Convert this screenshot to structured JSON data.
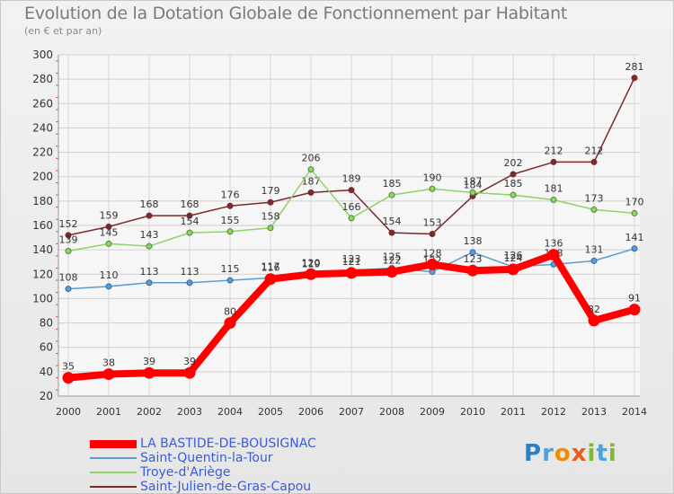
{
  "header": {
    "title": "Evolution de la Dotation Globale de Fonctionnement par Habitant",
    "subtitle": "(en € et par an)"
  },
  "brand": {
    "name": "Proxiti"
  },
  "chart_data": {
    "type": "line",
    "title": "Evolution de la Dotation Globale de Fonctionnement par Habitant",
    "subtitle": "(en € et par an)",
    "xlabel": "",
    "ylabel": "",
    "x": [
      "2000",
      "2001",
      "2002",
      "2003",
      "2004",
      "2005",
      "2006",
      "2007",
      "2008",
      "2009",
      "2010",
      "2011",
      "2012",
      "2013",
      "2014"
    ],
    "ylim": [
      20,
      300
    ],
    "yticks": [
      20,
      40,
      60,
      80,
      100,
      120,
      140,
      160,
      180,
      200,
      220,
      240,
      260,
      280,
      300
    ],
    "grid": true,
    "legend_position": "bottom-left",
    "series": [
      {
        "name": "Saint-Julien-de-Gras-Capou",
        "color": "#7a2a2a",
        "values": [
          152,
          159,
          168,
          168,
          176,
          179,
          187,
          189,
          154,
          153,
          184,
          202,
          212,
          212,
          281
        ]
      },
      {
        "name": "Troye-d'Ariège",
        "color": "#8fd16a",
        "values": [
          139,
          145,
          143,
          154,
          155,
          158,
          206,
          166,
          185,
          190,
          187,
          185,
          181,
          173,
          170
        ]
      },
      {
        "name": "Saint-Quentin-la-Tour",
        "color": "#5a9bd4",
        "values": [
          108,
          110,
          113,
          113,
          115,
          117,
          119,
          123,
          125,
          122,
          138,
          126,
          128,
          131,
          141
        ]
      },
      {
        "name": "LA BASTIDE-DE-BOUSIGNAC",
        "color": "#ff0000",
        "values": [
          35,
          38,
          39,
          39,
          80,
          116,
          120,
          121,
          122,
          128,
          123,
          124,
          136,
          82,
          91
        ]
      }
    ],
    "legend": [
      {
        "name": "LA BASTIDE-DE-BOUSIGNAC",
        "color": "#ff0000"
      },
      {
        "name": "Saint-Quentin-la-Tour",
        "color": "#5a9bd4"
      },
      {
        "name": "Troye-d'Ariège",
        "color": "#8fd16a"
      },
      {
        "name": "Saint-Julien-de-Gras-Capou",
        "color": "#7a2a2a"
      }
    ]
  }
}
